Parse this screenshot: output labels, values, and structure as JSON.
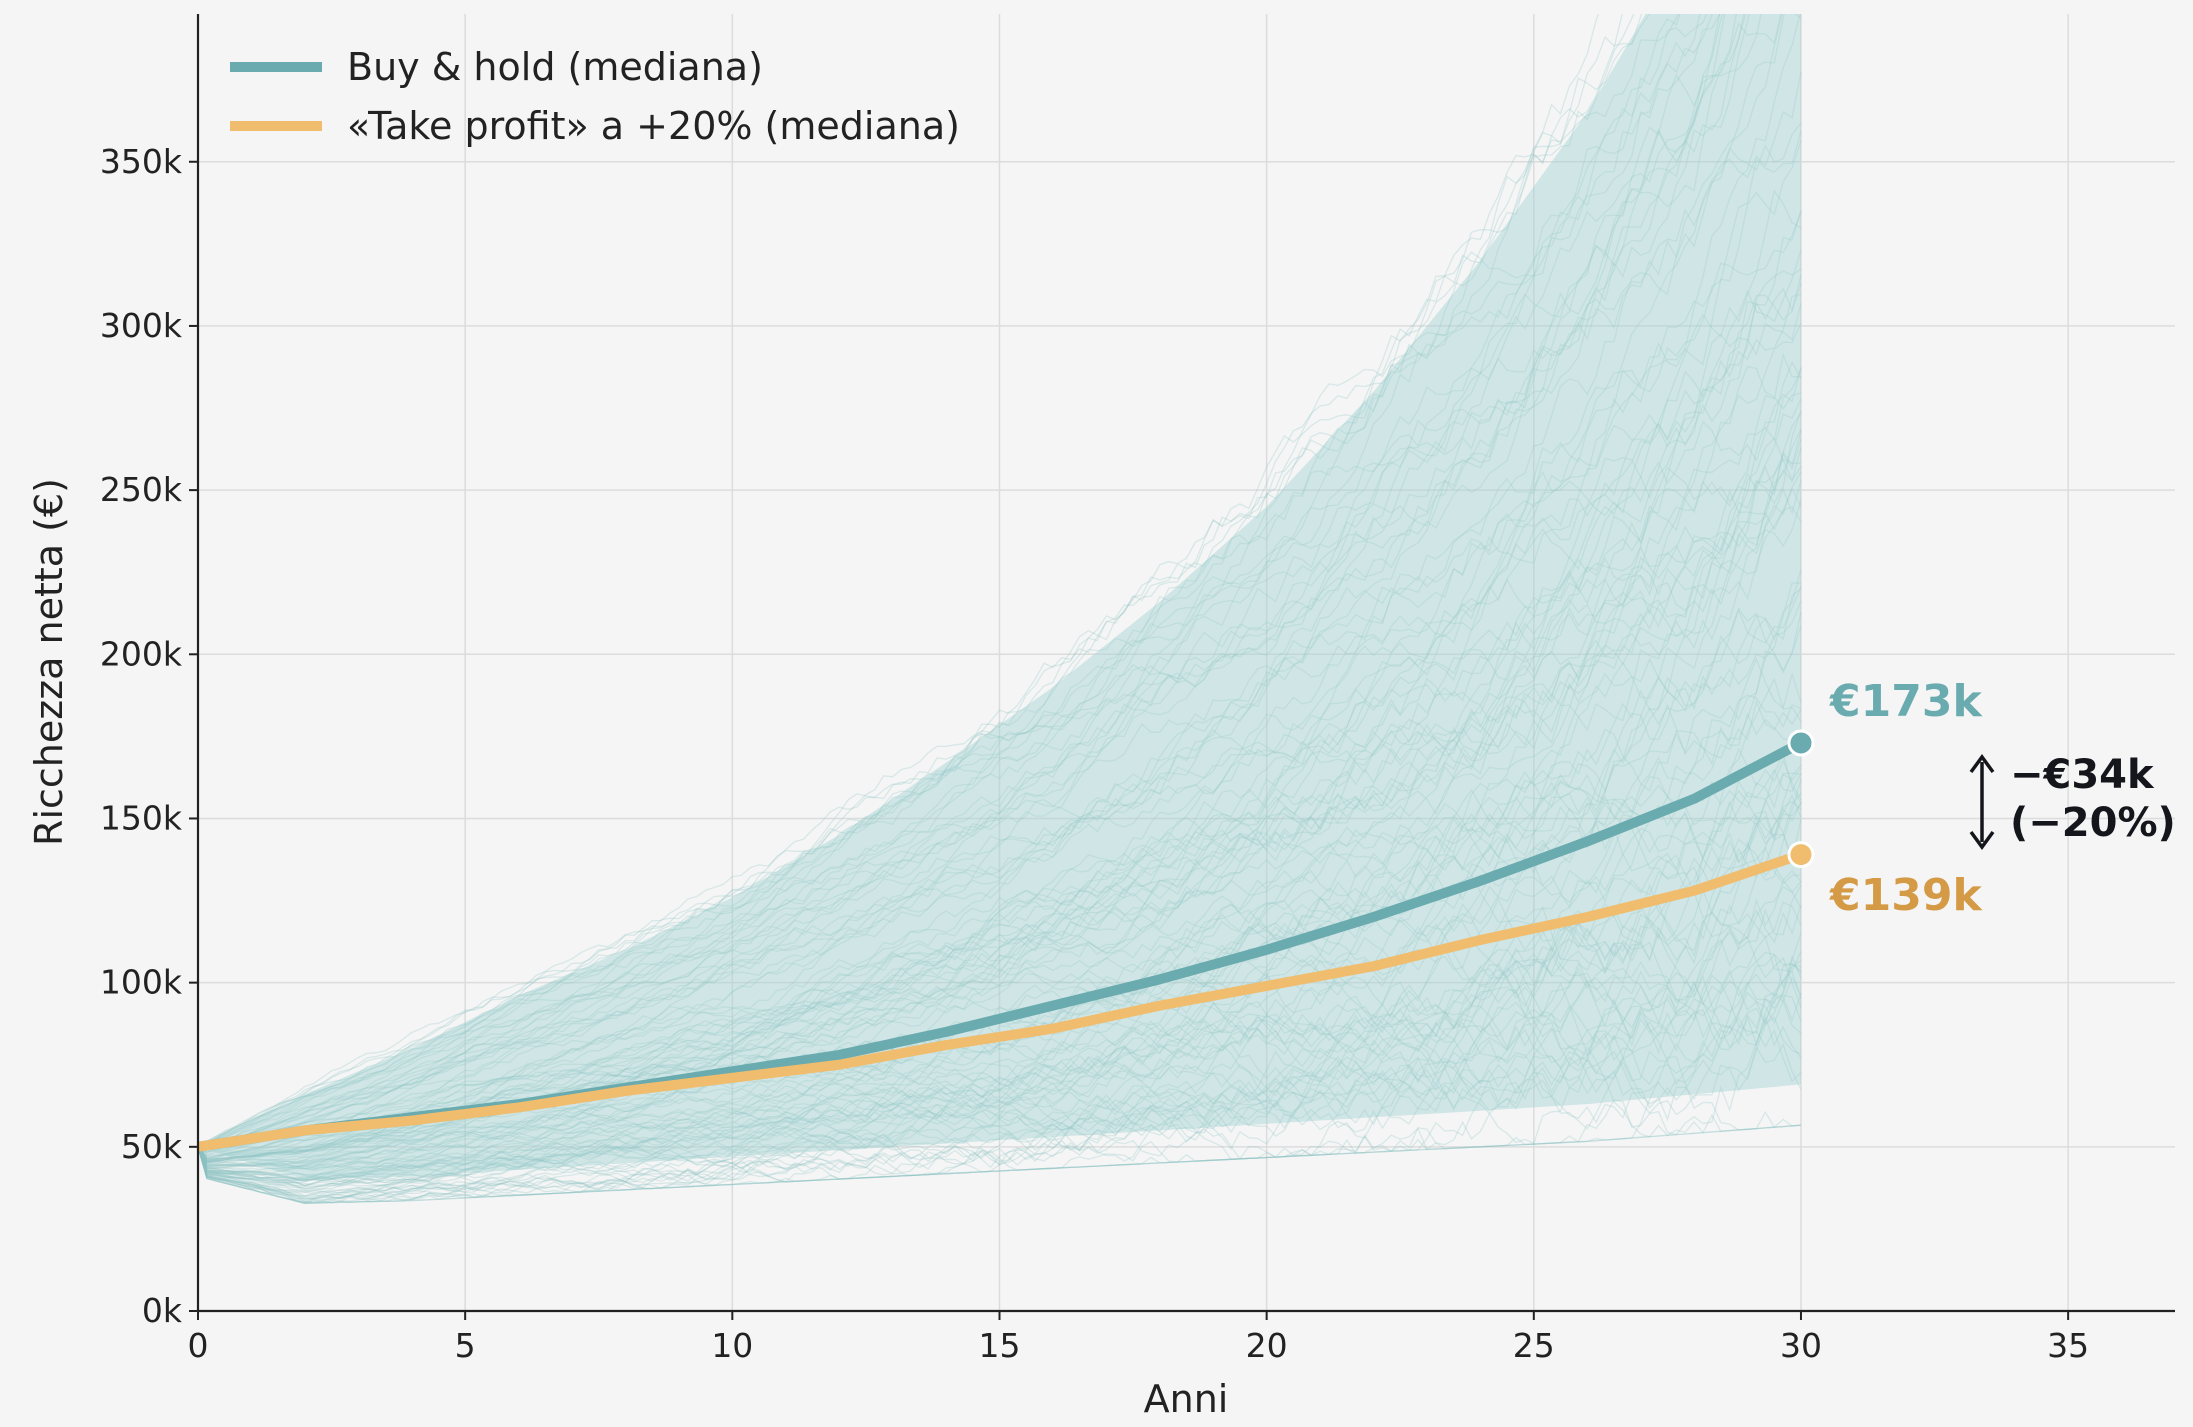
{
  "chart_data": {
    "type": "line",
    "xlabel": "Anni",
    "ylabel": "Ricchezza netta (€)",
    "xlim": [
      0,
      37
    ],
    "ylim": [
      0,
      395000
    ],
    "xticks": [
      0,
      5,
      10,
      15,
      20,
      25,
      30,
      35
    ],
    "yticks": [
      0,
      50000,
      100000,
      150000,
      200000,
      250000,
      300000,
      350000
    ],
    "ytick_labels": [
      "0k",
      "50k",
      "100k",
      "150k",
      "200k",
      "250k",
      "300k",
      "350k"
    ],
    "grid": true,
    "legend_position": "top-left",
    "series": [
      {
        "name": "Buy & hold (mediana)",
        "color": "#6aabaf",
        "x": [
          0,
          2,
          4,
          6,
          8,
          10,
          12,
          14,
          16,
          18,
          20,
          22,
          24,
          26,
          28,
          30
        ],
        "values": [
          50000,
          55000,
          59000,
          63000,
          68000,
          73000,
          78000,
          85000,
          93000,
          101000,
          110000,
          120000,
          131000,
          143000,
          156000,
          173000
        ]
      },
      {
        "name": "«Take profit» a +20% (mediana)",
        "color": "#f0bd6e",
        "x": [
          0,
          2,
          4,
          6,
          8,
          10,
          12,
          14,
          16,
          18,
          20,
          22,
          24,
          26,
          28,
          30
        ],
        "values": [
          50000,
          55000,
          58000,
          62000,
          67000,
          71000,
          75000,
          81000,
          86000,
          93000,
          99000,
          105000,
          113000,
          120000,
          128000,
          139000
        ]
      }
    ],
    "band": {
      "color": "#9ed0cf",
      "x": [
        0,
        2,
        4,
        6,
        8,
        10,
        12,
        14,
        16,
        18,
        20,
        22,
        24,
        26,
        28,
        30
      ],
      "lower": [
        50000,
        40000,
        41000,
        43000,
        45000,
        47000,
        49000,
        51000,
        53000,
        55000,
        57000,
        59000,
        61000,
        63000,
        66000,
        69000
      ],
      "upper": [
        50000,
        66000,
        80000,
        96000,
        110000,
        126000,
        145000,
        167000,
        190000,
        216000,
        245000,
        280000,
        320000,
        365000,
        420000,
        500000
      ]
    },
    "annotations": {
      "buyhold_end": "€173k",
      "takeprofit_end": "€139k",
      "diff_line1": "−€34k",
      "diff_line2": "(−20%)"
    }
  }
}
